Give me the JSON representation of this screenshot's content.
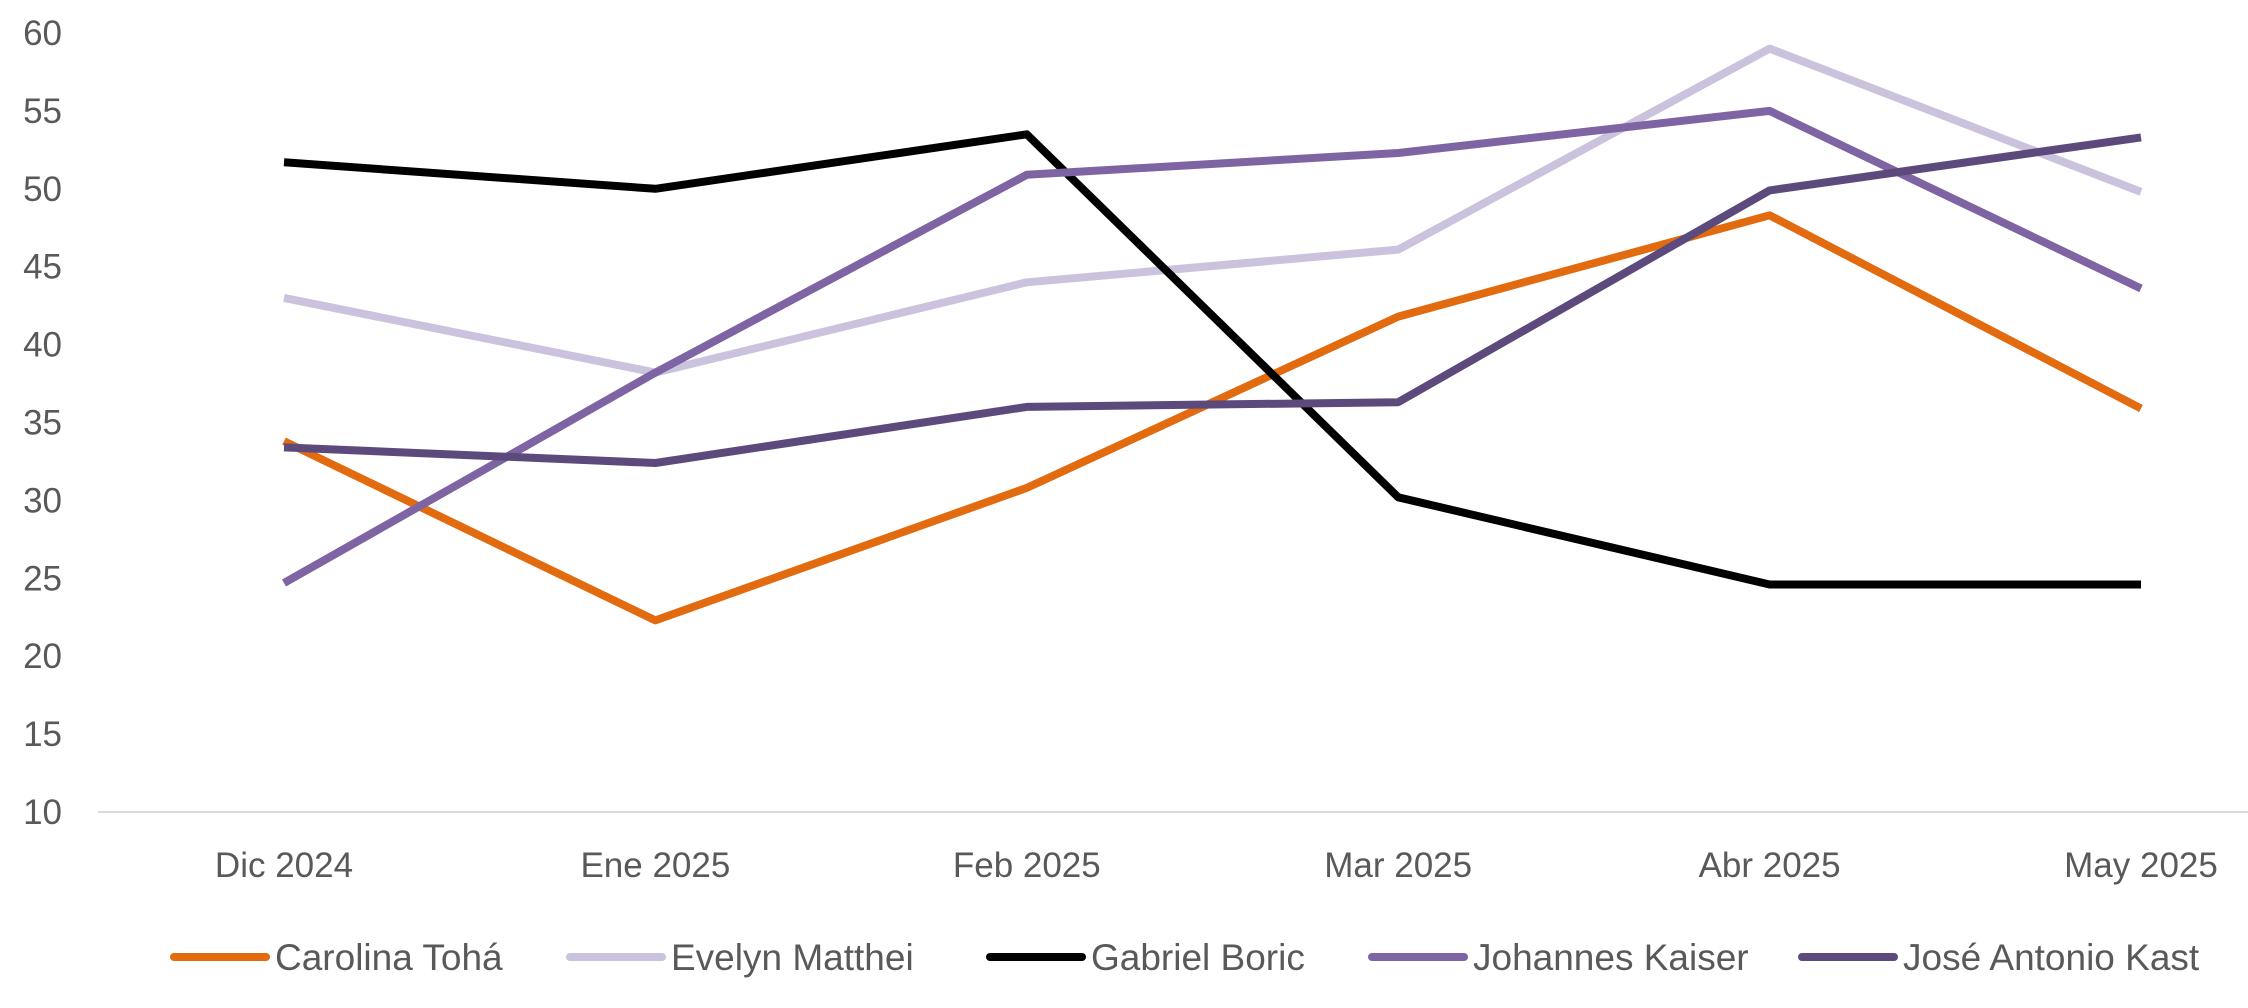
{
  "chart_data": {
    "type": "line",
    "categories": [
      "Dic 2024",
      "Ene 2025",
      "Feb 2025",
      "Mar 2025",
      "Abr 2025",
      "May 2025"
    ],
    "series": [
      {
        "name": "Carolina Tohá",
        "color": "#E26B10",
        "values": [
          33.8,
          22.3,
          30.8,
          41.8,
          48.3,
          35.9
        ]
      },
      {
        "name": "Evelyn Matthei",
        "color": "#CBC2DE",
        "values": [
          43.0,
          38.2,
          44.0,
          46.1,
          59.0,
          49.8
        ]
      },
      {
        "name": "Gabriel Boric",
        "color": "#000000",
        "values": [
          51.7,
          50.0,
          53.5,
          30.2,
          24.6,
          24.6
        ]
      },
      {
        "name": "Johannes Kaiser",
        "color": "#7E64A2",
        "values": [
          24.7,
          38.2,
          50.9,
          52.3,
          55.0,
          43.6
        ]
      },
      {
        "name": "José Antonio Kast",
        "color": "#5C4A7C",
        "values": [
          33.4,
          32.4,
          36.0,
          36.3,
          49.9,
          53.3
        ]
      }
    ],
    "y_ticks": [
      "10",
      "15",
      "20",
      "25",
      "30",
      "35",
      "40",
      "45",
      "50",
      "55",
      "60"
    ],
    "ylim": [
      10,
      60
    ],
    "grid": false,
    "legend_position": "bottom",
    "axis_line_color": "#D9D9D9"
  }
}
